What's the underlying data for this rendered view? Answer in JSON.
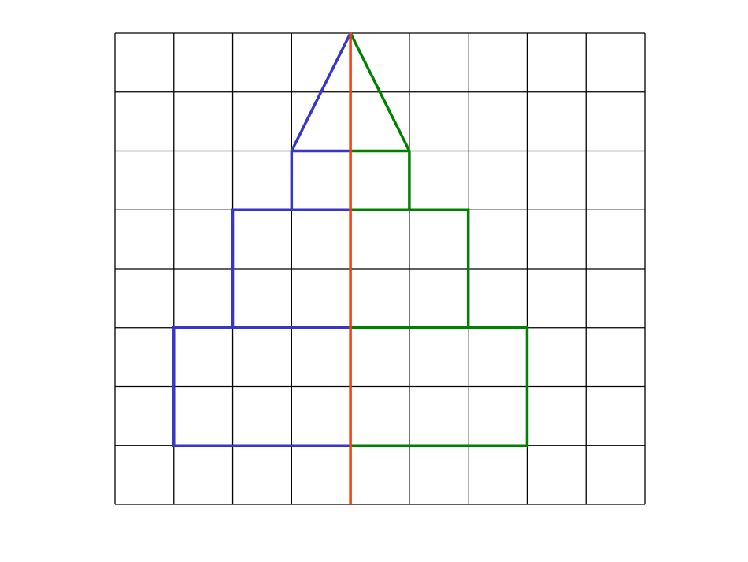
{
  "diagram": {
    "grid": {
      "columns": 9,
      "rows": 8,
      "line_color": "#000000"
    },
    "axis_of_symmetry": {
      "column": 4,
      "color": "#ee4411"
    },
    "left_half": {
      "color": "#3636c8",
      "outline": [
        [
          4,
          0
        ],
        [
          3,
          2
        ],
        [
          3,
          3
        ],
        [
          2,
          3
        ],
        [
          2,
          5
        ],
        [
          1,
          5
        ],
        [
          1,
          7
        ],
        [
          4,
          7
        ]
      ],
      "inner_lines": [
        [
          [
            3,
            2
          ],
          [
            4,
            2
          ]
        ],
        [
          [
            3,
            3
          ],
          [
            4,
            3
          ]
        ],
        [
          [
            2,
            5
          ],
          [
            4,
            5
          ]
        ]
      ]
    },
    "right_half": {
      "color": "#008000",
      "outline": [
        [
          4,
          0
        ],
        [
          5,
          2
        ],
        [
          5,
          3
        ],
        [
          6,
          3
        ],
        [
          6,
          5
        ],
        [
          7,
          5
        ],
        [
          7,
          7
        ],
        [
          4,
          7
        ]
      ],
      "inner_lines": [
        [
          [
            4,
            2
          ],
          [
            5,
            2
          ]
        ],
        [
          [
            4,
            3
          ],
          [
            6,
            3
          ]
        ],
        [
          [
            4,
            5
          ],
          [
            7,
            5
          ]
        ]
      ]
    }
  }
}
